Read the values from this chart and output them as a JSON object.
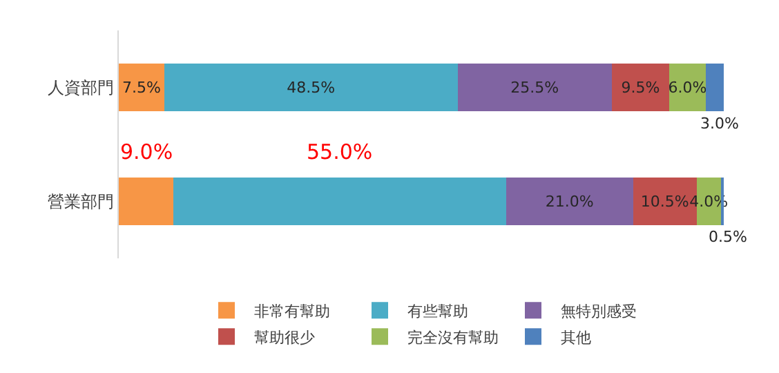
{
  "chart_data": {
    "type": "bar",
    "orientation": "horizontal",
    "stacked": true,
    "categories": [
      "人資部門",
      "營業部門"
    ],
    "series": [
      {
        "name": "非常有幫助",
        "color": "#f79646",
        "values": [
          7.5,
          9.0
        ],
        "value_labels": [
          "7.5%",
          null
        ]
      },
      {
        "name": "有些幫助",
        "color": "#4bacc6",
        "values": [
          48.5,
          55.0
        ],
        "value_labels": [
          "48.5%",
          null
        ]
      },
      {
        "name": "無特別感受",
        "color": "#8064a2",
        "values": [
          25.5,
          21.0
        ],
        "value_labels": [
          "25.5%",
          "21.0%"
        ]
      },
      {
        "name": "幫助很少",
        "color": "#c0504d",
        "values": [
          9.5,
          10.5
        ],
        "value_labels": [
          "9.5%",
          "10.5%"
        ]
      },
      {
        "name": "完全沒有幫助",
        "color": "#9bbb59",
        "values": [
          6.0,
          4.0
        ],
        "value_labels": [
          "6.0%",
          "4.0%"
        ]
      },
      {
        "name": "其他",
        "color": "#4f81bd",
        "values": [
          3.0,
          0.5
        ],
        "value_labels": [
          "3.0%",
          "0.5%"
        ]
      }
    ],
    "annotations": [
      "9.0%",
      "55.0%"
    ],
    "xlim": [
      0,
      100
    ],
    "tick_labels": "y",
    "legend": "bottom"
  }
}
